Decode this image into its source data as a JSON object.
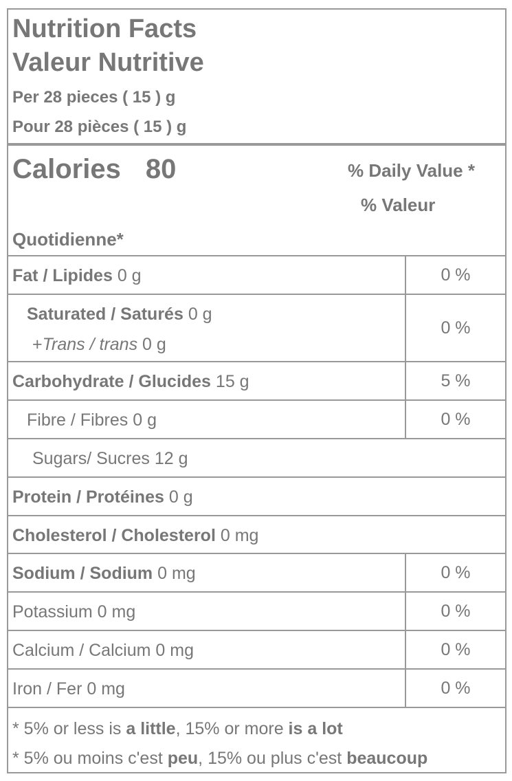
{
  "header": {
    "title_en": "Nutrition Facts",
    "title_fr": "Valeur Nutritive",
    "serving_en": "Per 28 pieces ( 15 ) g",
    "serving_fr": "Pour 28 pièces ( 15 ) g"
  },
  "calories": {
    "label": "Calories",
    "value": "80"
  },
  "daily_value": {
    "line1": "% Daily Value *",
    "line2": "% Valeur",
    "line3": "Quotidienne*"
  },
  "nutrients": {
    "fat": {
      "name": "Fat / Lipides",
      "amount": "0 g",
      "pct": "0 %"
    },
    "saturated": {
      "name": "Saturated / Saturés",
      "amount": "0 g"
    },
    "trans": {
      "prefix": "+",
      "name": "Trans / trans",
      "amount": "0 g"
    },
    "sat_trans_pct": "0 %",
    "carb": {
      "name": "Carbohydrate / Glucides",
      "amount": "15 g",
      "pct": "5 %"
    },
    "fibre": {
      "name": "Fibre / Fibres",
      "amount": "0 g",
      "pct": "0 %"
    },
    "sugars": {
      "name": "Sugars/ Sucres",
      "amount": "12 g"
    },
    "protein": {
      "name": "Protein / Protéines",
      "amount": "0 g"
    },
    "cholesterol": {
      "name": "Cholesterol / Cholesterol",
      "amount": "0 mg"
    },
    "sodium": {
      "name": "Sodium / Sodium",
      "amount": "0 mg",
      "pct": "0 %"
    },
    "potassium": {
      "name": "Potassium",
      "amount": "0 mg",
      "pct": "0 %"
    },
    "calcium": {
      "name": "Calcium / Calcium",
      "amount": "0 mg",
      "pct": "0 %"
    },
    "iron": {
      "name": "Iron / Fer",
      "amount": "0 mg",
      "pct": "0 %"
    }
  },
  "footnote": {
    "en_a": "* 5% or less is ",
    "en_b": "a little",
    "en_c": ", 15% or more ",
    "en_d": "is a lot",
    "fr_a": "* 5% ou moins c'est ",
    "fr_b": "peu",
    "fr_c": ", 15% ou plus c'est ",
    "fr_d": "beaucoup"
  },
  "colors": {
    "text": "#777777",
    "rule": "#999999"
  }
}
